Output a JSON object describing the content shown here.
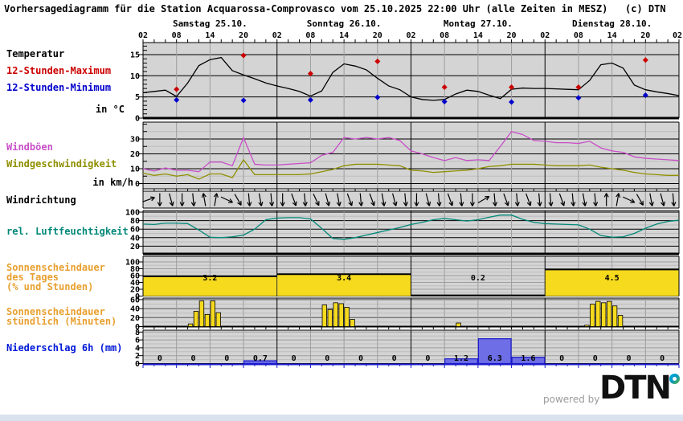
{
  "title": "Vorhersagediagramm für die Station Acquarossa-Comprovasco vom 25.10.2025 22:00 Uhr (alle Zeiten in MESZ)   (c) DTN",
  "sidebar": {
    "temperature_label": "Temperatur",
    "max_label": "12-Stunden-Maximum",
    "min_label": "12-Stunden-Minimum",
    "temp_unit": "in °C",
    "gusts_label": "Windböen",
    "windspeed_label": "Windgeschwindigkeit",
    "wind_unit": "in km/h",
    "winddir_label": "Windrichtung",
    "humidity_label": "rel. Luftfeuchtigkeit",
    "sunshine_day_line1": "Sonnenscheindauer",
    "sunshine_day_line2": "des Tages",
    "sunshine_day_line3": "(% und Stunden)",
    "sunshine_hour_line1": "Sonnenscheindauer",
    "sunshine_hour_line2": "stündlich (Minuten)",
    "precip_label": "Niederschlag 6h (mm)"
  },
  "footer": {
    "powered_by": "powered by",
    "brand": "DTN"
  },
  "colors": {
    "plot_bg": "#d4d4d4",
    "grid": "#9e9e9e",
    "grid_light": "#bdbdbd",
    "temperature": "#000000",
    "max": "#cc0000",
    "min": "#0000cc",
    "gusts": "#c84fc8",
    "windspeed": "#8f8f00",
    "humidity": "#008878",
    "sunshine": "#f6da1e",
    "sunshine_label": "#e8a030",
    "precip_fill": "#6e6ee6",
    "precip_border": "#1a1acc",
    "precip_label": "#0018d8",
    "band": "#d9e2ee",
    "powered": "#9a9a9a"
  },
  "chart_data": {
    "type": "line",
    "subtype": "meteogram-multi-panel",
    "station": "Acquarossa-Comprovasco",
    "run": "25.10.2025 22:00 MESZ",
    "days": [
      "Samstag 25.10.",
      "Sonntag 26.10.",
      "Montag 27.10.",
      "Dienstag 28.10."
    ],
    "hour_ticks": [
      "02",
      "08",
      "14",
      "20"
    ],
    "final_hour_tick": "02",
    "sample_step_hours": 2,
    "temperature": {
      "unit": "°C",
      "yticks": [
        15,
        10,
        5,
        0
      ],
      "series": [
        6.0,
        6.3,
        6.6,
        5.1,
        8.3,
        12.4,
        13.8,
        14.3,
        11.2,
        10.2,
        9.3,
        8.3,
        7.6,
        7.0,
        6.3,
        5.2,
        6.4,
        10.8,
        12.8,
        12.3,
        11.4,
        9.4,
        7.6,
        6.7,
        5.0,
        4.4,
        4.2,
        4.4,
        5.7,
        6.6,
        6.3,
        5.4,
        4.6,
        6.8,
        7.1,
        7.0,
        7.0,
        6.9,
        6.8,
        6.7,
        8.9,
        12.6,
        13.0,
        11.8,
        7.8,
        6.7,
        6.2,
        5.8,
        5.3
      ],
      "max_12h": [
        6.8,
        14.8,
        10.5,
        13.4,
        7.3,
        7.3,
        7.3,
        13.7
      ],
      "min_12h": [
        4.3,
        4.2,
        4.3,
        4.9,
        3.9,
        3.8,
        4.8,
        5.4
      ],
      "dot_hour_offsets": [
        6,
        18
      ]
    },
    "wind": {
      "unit": "km/h",
      "yticks": [
        30,
        20,
        10,
        0
      ],
      "gusts": [
        10,
        8.5,
        10.5,
        9,
        9,
        8,
        14.5,
        14.5,
        12,
        31,
        13,
        12.5,
        12.5,
        13,
        13.5,
        14,
        19,
        21,
        31,
        30,
        31,
        30,
        31,
        29,
        22,
        20,
        17.5,
        15.5,
        17.5,
        15.5,
        16,
        15.5,
        25,
        35,
        33,
        29,
        28.5,
        27.5,
        27.5,
        27,
        28.5,
        24,
        22,
        21,
        18,
        17,
        16.5,
        16,
        15.5
      ],
      "speed": [
        7,
        5.5,
        6.5,
        5,
        6,
        3,
        6.5,
        6.5,
        4,
        16,
        6,
        6,
        6,
        6,
        6,
        6.5,
        8,
        9.5,
        12,
        13,
        13,
        13,
        12.5,
        12,
        9,
        8.5,
        7.5,
        8,
        8.5,
        9,
        10,
        11.5,
        12,
        13,
        13,
        13,
        12.5,
        12,
        12,
        12,
        12.5,
        11,
        10,
        9,
        7.5,
        6.5,
        6,
        5.5,
        5.5
      ]
    },
    "wind_direction_deg": [
      70,
      180,
      165,
      180,
      175,
      350,
      10,
      115,
      150,
      175,
      170,
      175,
      180,
      160,
      175,
      155,
      165,
      170,
      160,
      175,
      160,
      170,
      165,
      175,
      180,
      165,
      175,
      160,
      175,
      180,
      60,
      175,
      160,
      175,
      160,
      175,
      175,
      160,
      175,
      170,
      175,
      0,
      10,
      115,
      150,
      170,
      165,
      175
    ],
    "humidity": {
      "unit": "%",
      "yticks": [
        100,
        80,
        60,
        40,
        20
      ],
      "series": [
        72,
        71,
        74,
        74,
        73,
        58,
        41,
        40,
        42,
        46,
        60,
        82,
        86,
        87,
        87,
        84,
        62,
        38,
        36,
        40,
        46,
        52,
        58,
        64,
        71,
        76,
        82,
        85,
        82,
        79,
        82,
        88,
        93,
        93,
        83,
        76,
        73,
        72,
        71,
        70,
        60,
        45,
        41,
        42,
        50,
        62,
        72,
        78,
        81
      ]
    },
    "sunshine_day": {
      "yticks": [
        100,
        80,
        60,
        40,
        20,
        0
      ],
      "percent": [
        58,
        64,
        2,
        78
      ],
      "hours_labels": [
        "3.2",
        "3.4",
        "0.2",
        "4.5"
      ]
    },
    "sunshine_hourly": {
      "yticks": [
        60,
        40,
        20,
        0
      ],
      "bars": [
        [
          0,
          10,
          6
        ],
        [
          0,
          11,
          34
        ],
        [
          0,
          12,
          57
        ],
        [
          0,
          13,
          27
        ],
        [
          0,
          14,
          57
        ],
        [
          0,
          15,
          31
        ],
        [
          1,
          10,
          48
        ],
        [
          1,
          11,
          38
        ],
        [
          1,
          12,
          53
        ],
        [
          1,
          13,
          51
        ],
        [
          1,
          14,
          43
        ],
        [
          1,
          15,
          16
        ],
        [
          2,
          10,
          8
        ],
        [
          3,
          9,
          3
        ],
        [
          3,
          10,
          50
        ],
        [
          3,
          11,
          56
        ],
        [
          3,
          12,
          53
        ],
        [
          3,
          13,
          56
        ],
        [
          3,
          14,
          46
        ],
        [
          3,
          15,
          25
        ]
      ]
    },
    "precip_6h": {
      "unit": "mm",
      "yticks": [
        8,
        6,
        4,
        2,
        0
      ],
      "values": [
        0,
        0,
        0,
        0.7,
        0,
        0,
        0,
        0,
        0,
        1.2,
        6.3,
        1.6,
        0,
        0,
        0,
        0
      ],
      "labels": [
        "0",
        "0",
        "0",
        "0.7",
        "0",
        "0",
        "0",
        "0",
        "0",
        "1.2",
        "6.3",
        "1.6",
        "0",
        "0",
        "0",
        "0"
      ]
    }
  }
}
